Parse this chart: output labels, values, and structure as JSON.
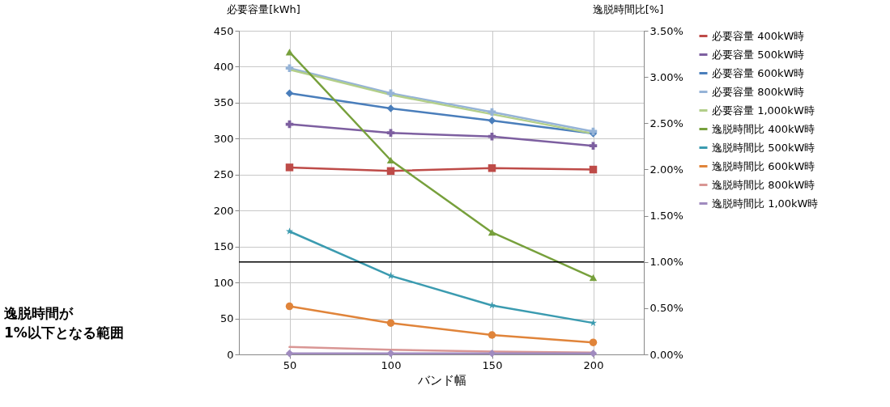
{
  "chart_data": {
    "type": "line",
    "xlabel": "バンド幅",
    "ylabel": "必要容量[kWh]",
    "y2label": "逸脱時間比[%]",
    "categories": [
      "50",
      "100",
      "150",
      "200"
    ],
    "ylim": [
      0,
      450
    ],
    "yticks": [
      0,
      50,
      100,
      150,
      200,
      250,
      300,
      350,
      400,
      450
    ],
    "y2lim": [
      0,
      3.5
    ],
    "y2ticks": [
      {
        "value": 0,
        "label": "0.00%"
      },
      {
        "value": 0.5,
        "label": "0.50%"
      },
      {
        "value": 1,
        "label": "1.00%"
      },
      {
        "value": 1.5,
        "label": "1.50%"
      },
      {
        "value": 2,
        "label": "2.00%"
      },
      {
        "value": 2.5,
        "label": "2.50%"
      },
      {
        "value": 3,
        "label": "3.00%"
      },
      {
        "value": 3.5,
        "label": "3.50%"
      }
    ],
    "grid": true,
    "legend": "right",
    "series": [
      {
        "name": "必要容量 400kW時",
        "color": "#be4b48",
        "marker": "square",
        "values": [
          260,
          255,
          259,
          257
        ]
      },
      {
        "name": "必要容量 500kW時",
        "color": "#7d5fa0",
        "marker": "cross",
        "values": [
          320,
          308,
          303,
          290
        ]
      },
      {
        "name": "必要容量 600kW時",
        "color": "#4a7ebb",
        "marker": "diamond",
        "values": [
          363,
          342,
          325,
          307
        ]
      },
      {
        "name": "必要容量 800kW時",
        "color": "#95b3d7",
        "marker": "cross",
        "values": [
          398,
          363,
          337,
          310
        ]
      },
      {
        "name": "必要容量 1,000kW時",
        "color": "#b3cf8a",
        "marker": "none",
        "values": [
          396,
          361,
          334,
          307
        ]
      },
      {
        "name": "逸脱時間比 400kW時",
        "color": "#77a03c",
        "marker": "triangle",
        "axis": "y2",
        "values": [
          3.27,
          2.1,
          1.32,
          0.83
        ]
      },
      {
        "name": "逸脱時間比 500kW時",
        "color": "#3b9bb0",
        "marker": "star",
        "axis": "y2",
        "values": [
          1.33,
          0.85,
          0.53,
          0.34
        ]
      },
      {
        "name": "逸脱時間比 600kW時",
        "color": "#e0843a",
        "marker": "circle",
        "axis": "y2",
        "values": [
          0.52,
          0.34,
          0.21,
          0.13
        ]
      },
      {
        "name": "逸脱時間比 800kW時",
        "color": "#d99694",
        "marker": "none",
        "axis": "y2",
        "values": [
          0.08,
          0.05,
          0.03,
          0.02
        ]
      },
      {
        "name": "逸脱時間比 1,00kW時",
        "color": "#a08bbf",
        "marker": "diamond",
        "axis": "y2",
        "values": [
          0.01,
          0.01,
          0.01,
          0.01
        ]
      }
    ],
    "ref_lines": [
      {
        "axis": "y2",
        "value": 1,
        "color": "#000000"
      }
    ],
    "annotations": [
      "逸脱時間が\n1%以下となる範囲"
    ]
  }
}
